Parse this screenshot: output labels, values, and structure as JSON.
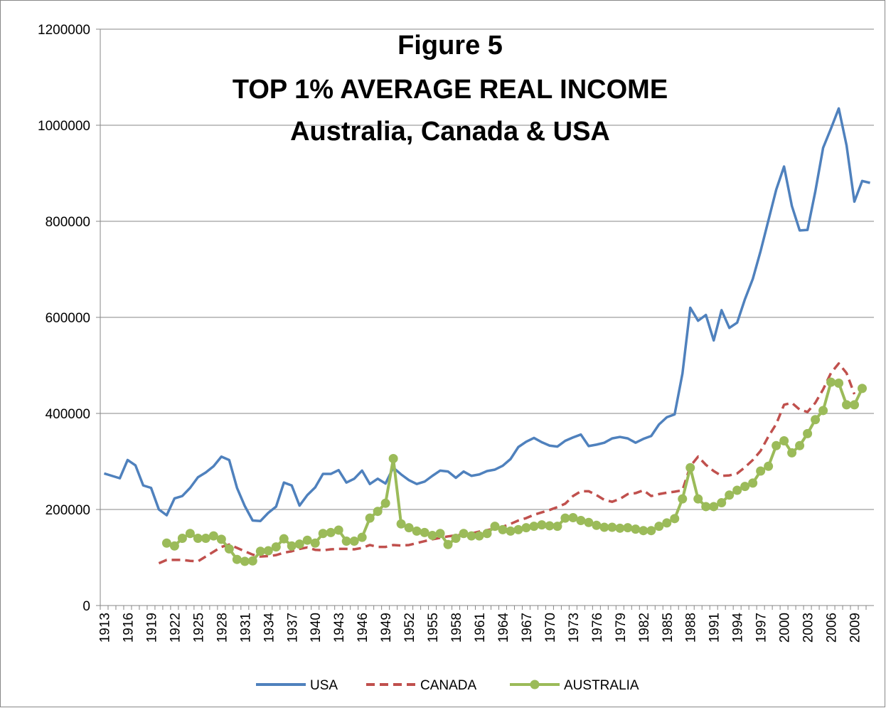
{
  "chart_data": {
    "type": "line",
    "title": [
      "Figure 5",
      "TOP 1% AVERAGE REAL INCOME",
      "Australia, Canada & USA"
    ],
    "categories": [
      "1913",
      null,
      null,
      "1916",
      null,
      null,
      "1919",
      null,
      null,
      "1922",
      null,
      null,
      "1925",
      null,
      null,
      "1928",
      null,
      null,
      "1931",
      null,
      null,
      "1934",
      null,
      null,
      "1937",
      null,
      null,
      "1940",
      null,
      null,
      "1943",
      null,
      null,
      "1946",
      null,
      null,
      "1949",
      null,
      null,
      "1952",
      null,
      null,
      "1955",
      null,
      null,
      "1958",
      null,
      null,
      "1961",
      null,
      null,
      "1964",
      null,
      null,
      "1967",
      null,
      null,
      "1970",
      null,
      null,
      "1973",
      null,
      null,
      "1976",
      null,
      null,
      "1979",
      null,
      null,
      "1982",
      null,
      null,
      "1985",
      null,
      null,
      "1988",
      null,
      null,
      "1991",
      null,
      null,
      "1994",
      null,
      null,
      "1997",
      null,
      null,
      "2000",
      null,
      null,
      "2003",
      null,
      null,
      "2006",
      null,
      null,
      "2009",
      null,
      null
    ],
    "ylim": [
      0,
      1200000
    ],
    "yticks": [
      0,
      200000,
      400000,
      600000,
      800000,
      1000000,
      1200000
    ],
    "grid": true,
    "legend": "bottom",
    "series": [
      {
        "name": "USA",
        "color": "#4f81bd",
        "dash": false,
        "marker": false,
        "values": [
          275000,
          270000,
          265000,
          303000,
          292000,
          250000,
          245000,
          200000,
          188000,
          223000,
          228000,
          245000,
          267000,
          277000,
          290000,
          310000,
          303000,
          245000,
          207000,
          177000,
          176000,
          193000,
          206000,
          256000,
          250000,
          208000,
          230000,
          246000,
          274000,
          274000,
          282000,
          256000,
          264000,
          281000,
          253000,
          264000,
          254000,
          287000,
          273000,
          261000,
          253000,
          258000,
          270000,
          281000,
          279000,
          266000,
          279000,
          270000,
          273000,
          280000,
          283000,
          291000,
          305000,
          330000,
          341000,
          349000,
          340000,
          333000,
          331000,
          343000,
          350000,
          356000,
          332000,
          335000,
          339000,
          348000,
          351000,
          348000,
          339000,
          347000,
          353000,
          377000,
          392000,
          398000,
          483000,
          620000,
          593000,
          605000,
          552000,
          615000,
          578000,
          589000,
          638000,
          680000,
          738000,
          802000,
          866000,
          914000,
          832000,
          781000,
          782000,
          862000,
          953000,
          993000,
          1035000,
          958000,
          841000,
          884000,
          880000
        ]
      },
      {
        "name": "CANADA",
        "color": "#c0504d",
        "dash": true,
        "marker": false,
        "values": [
          null,
          null,
          null,
          null,
          null,
          null,
          null,
          88000,
          95000,
          95000,
          95000,
          93000,
          92000,
          102000,
          112000,
          122000,
          127000,
          120000,
          113000,
          106000,
          102000,
          103000,
          105000,
          110000,
          113000,
          118000,
          121000,
          116000,
          115000,
          117000,
          118000,
          118000,
          117000,
          120000,
          126000,
          122000,
          122000,
          126000,
          125000,
          126000,
          130000,
          134000,
          138000,
          141000,
          144000,
          146000,
          148000,
          150000,
          154000,
          157000,
          160000,
          164000,
          170000,
          177000,
          182000,
          189000,
          194000,
          199000,
          205000,
          212000,
          228000,
          238000,
          238000,
          230000,
          220000,
          216000,
          222000,
          232000,
          234000,
          240000,
          228000,
          232000,
          235000,
          237000,
          240000,
          290000,
          310000,
          293000,
          280000,
          270000,
          271000,
          275000,
          288000,
          303000,
          322000,
          352000,
          378000,
          418000,
          422000,
          408000,
          403000,
          422000,
          450000,
          484000,
          504000,
          484000,
          440000,
          null,
          null
        ]
      },
      {
        "name": "AUSTRALIA",
        "color": "#9bbb59",
        "dash": false,
        "marker": true,
        "values": [
          null,
          null,
          null,
          null,
          null,
          null,
          null,
          null,
          130000,
          124000,
          140000,
          150000,
          140000,
          140000,
          145000,
          138000,
          118000,
          96000,
          92000,
          93000,
          113000,
          114000,
          122000,
          139000,
          124000,
          128000,
          136000,
          130000,
          150000,
          152000,
          157000,
          134000,
          134000,
          142000,
          182000,
          196000,
          213000,
          306000,
          170000,
          162000,
          155000,
          152000,
          146000,
          150000,
          127000,
          140000,
          150000,
          145000,
          145000,
          150000,
          165000,
          158000,
          155000,
          158000,
          162000,
          165000,
          168000,
          166000,
          165000,
          182000,
          183000,
          177000,
          173000,
          167000,
          163000,
          163000,
          161000,
          162000,
          159000,
          156000,
          156000,
          165000,
          172000,
          181000,
          222000,
          287000,
          222000,
          206000,
          206000,
          214000,
          230000,
          240000,
          248000,
          255000,
          280000,
          290000,
          333000,
          343000,
          318000,
          333000,
          358000,
          387000,
          406000,
          465000,
          463000,
          418000,
          418000,
          452000,
          null
        ]
      }
    ]
  }
}
